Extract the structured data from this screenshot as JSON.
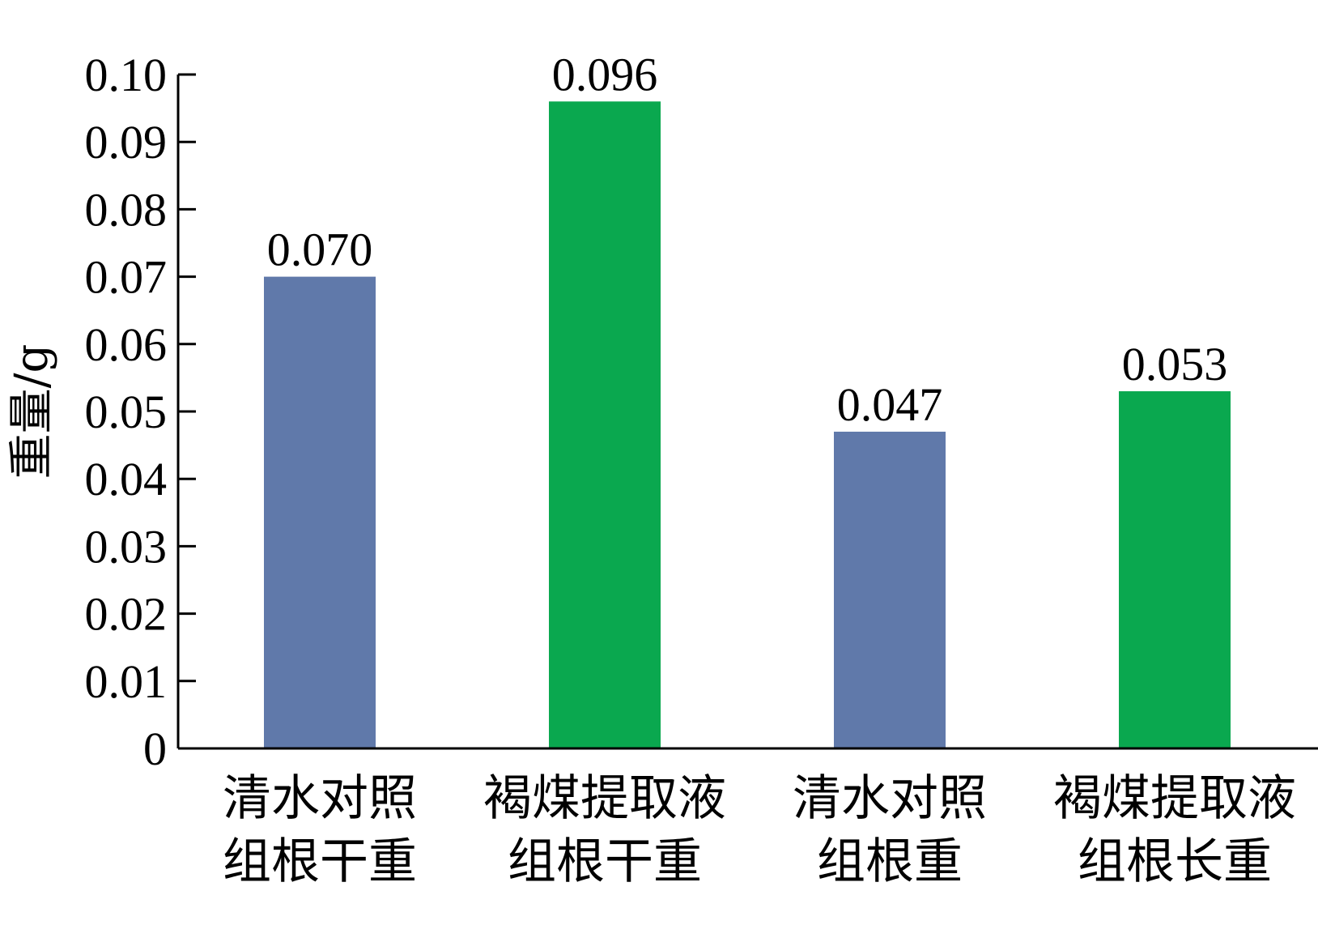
{
  "chart_data": {
    "type": "bar",
    "title": "",
    "xlabel": "",
    "ylabel": "重量/g",
    "ylim": [
      0,
      0.1
    ],
    "yticks": [
      "0",
      "0.01",
      "0.02",
      "0.03",
      "0.04",
      "0.05",
      "0.06",
      "0.07",
      "0.08",
      "0.09",
      "0.10"
    ],
    "grid": false,
    "categories": [
      [
        "清水对照",
        "组根干重"
      ],
      [
        "褐煤提取液",
        "组根干重"
      ],
      [
        "清水对照",
        "组根重"
      ],
      [
        "褐煤提取液",
        "组根长重"
      ]
    ],
    "values": [
      0.07,
      0.096,
      0.047,
      0.053
    ],
    "value_labels": [
      "0.070",
      "0.096",
      "0.047",
      "0.053"
    ],
    "colors": [
      "#6079AA",
      "#0AA84F",
      "#6079AA",
      "#0AA84F"
    ]
  }
}
